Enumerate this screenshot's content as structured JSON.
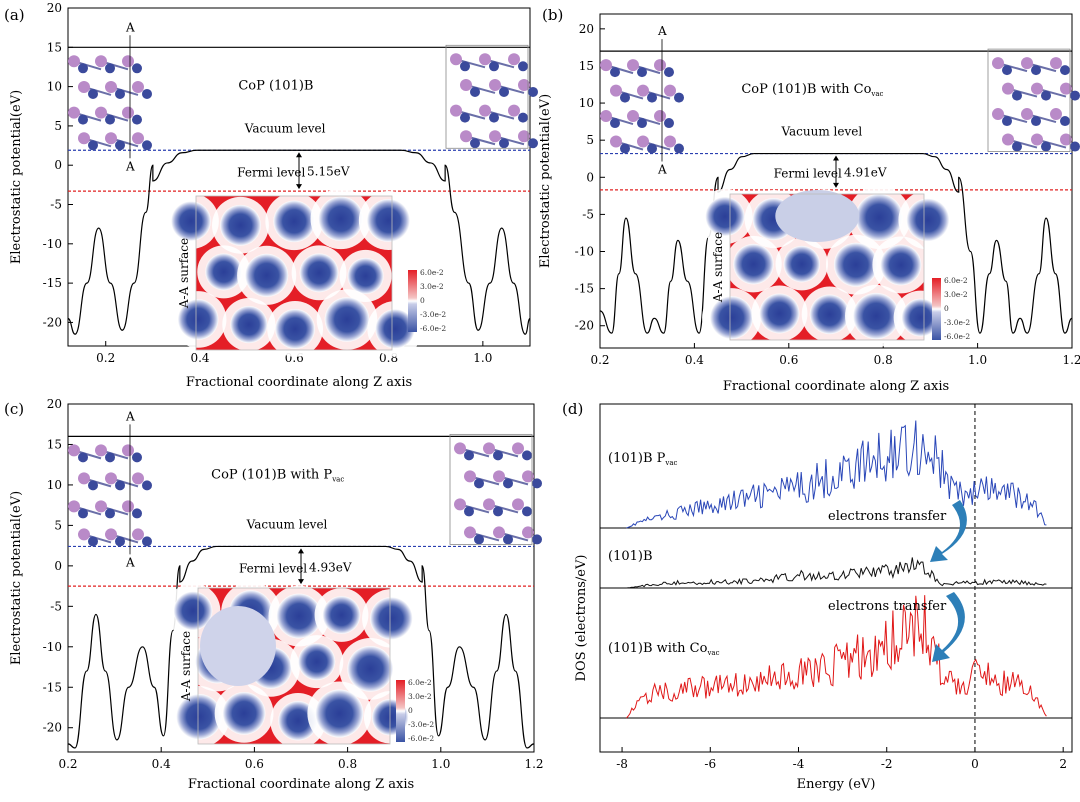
{
  "colors": {
    "potential_line": "#000000",
    "vacuum_line": "#2a3fb0",
    "fermi_line": "#e02020",
    "map_red": "#e41e26",
    "map_blue": "#3a53a4",
    "atom_co": "#3b4a9c",
    "atom_p": "#b98ac8",
    "dos_pvac": "#2a47b8",
    "dos_101b": "#111111",
    "dos_covac": "#e01818",
    "arrow": "#2d7fb8"
  },
  "icons": [
    "atomic-structure-icon",
    "curved-arrow-icon",
    "double-arrow-icon"
  ],
  "chart_data": [
    {
      "panel": "(a)",
      "type": "line",
      "title": "CoP (101)B",
      "title_sub": "",
      "xlabel": "Fractional coordinate along Z axis",
      "ylabel": "Electrostatic potential(eV)",
      "xlim": [
        0.12,
        1.1
      ],
      "ylim": [
        -23,
        20
      ],
      "xticks": [
        "0.2",
        "0.4",
        "0.6",
        "0.8",
        "1.0"
      ],
      "xtick_values": [
        0.2,
        0.4,
        0.6,
        0.8,
        1.0
      ],
      "yticks": [
        "20",
        "15",
        "10",
        "5",
        "0",
        "-5",
        "-10",
        "-15",
        "-20"
      ],
      "ytick_values": [
        20,
        15,
        10,
        5,
        0,
        -5,
        -10,
        -15,
        -20
      ],
      "slab_top": 15,
      "vacuum_level": 1.9,
      "fermi_level": -3.3,
      "work_function": "5.15eV",
      "vacuum_label": "Vacuum level",
      "fermi_label": "Fermi level",
      "marker_label": "A",
      "surface_label": "A-A surface",
      "colorbar_ticks": [
        "6.0e-2",
        "3.0e-2",
        "0",
        "-3.0e-2",
        "-6.0e-2"
      ],
      "plateau": [
        0.3,
        0.92
      ],
      "left_wells": [
        [
          0.12,
          -19.5
        ],
        [
          0.135,
          -21.5
        ],
        [
          0.16,
          -15
        ],
        [
          0.185,
          -8
        ],
        [
          0.21,
          -15
        ],
        [
          0.235,
          -21
        ],
        [
          0.26,
          -15
        ],
        [
          0.285,
          -6
        ],
        [
          0.3,
          0
        ]
      ],
      "right_wells": [
        [
          0.92,
          0
        ],
        [
          0.94,
          -6
        ],
        [
          0.97,
          -15
        ],
        [
          0.99,
          -21
        ],
        [
          1.015,
          -15
        ],
        [
          1.04,
          -8
        ],
        [
          1.065,
          -15
        ],
        [
          1.09,
          -21.5
        ],
        [
          1.1,
          -19.5
        ]
      ]
    },
    {
      "panel": "(b)",
      "type": "line",
      "title": "CoP (101)B  with Co",
      "title_sub": "vac",
      "xlabel": "Fractional coordinate along Z axis",
      "ylabel": "Electrostatic potential(eV)",
      "xlim": [
        0.2,
        1.2
      ],
      "ylim": [
        -23,
        22
      ],
      "xticks": [
        "0.2",
        "0.4",
        "0.6",
        "0.8",
        "1.0",
        "1.2"
      ],
      "xtick_values": [
        0.2,
        0.4,
        0.6,
        0.8,
        1.0,
        1.2
      ],
      "yticks": [
        "20",
        "15",
        "10",
        "5",
        "0",
        "-5",
        "-10",
        "-15",
        "-20"
      ],
      "ytick_values": [
        20,
        15,
        10,
        5,
        0,
        -5,
        -10,
        -15,
        -20
      ],
      "slab_top": 17,
      "vacuum_level": 3.2,
      "fermi_level": -1.7,
      "work_function": "4.91eV",
      "vacuum_label": "Vacuum level",
      "fermi_label": "Fermi level",
      "marker_label": "A",
      "surface_label": "A-A surface",
      "colorbar_ticks": [
        "6.0e-2",
        "3.0e-2",
        "0",
        "-3.0e-2",
        "-6.0e-2"
      ],
      "plateau": [
        0.45,
        0.96
      ],
      "left_wells": [
        [
          0.2,
          -18
        ],
        [
          0.225,
          -21
        ],
        [
          0.24,
          -13
        ],
        [
          0.255,
          -5.5
        ],
        [
          0.275,
          -13
        ],
        [
          0.3,
          -21
        ],
        [
          0.315,
          -19
        ],
        [
          0.335,
          -21
        ],
        [
          0.35,
          -14
        ],
        [
          0.365,
          -8.5
        ],
        [
          0.385,
          -14
        ],
        [
          0.41,
          -21
        ],
        [
          0.43,
          -8
        ],
        [
          0.45,
          0
        ]
      ],
      "right_wells": [
        [
          0.96,
          0
        ],
        [
          0.985,
          -10
        ],
        [
          1.005,
          -21
        ],
        [
          1.025,
          -13
        ],
        [
          1.04,
          -8.5
        ],
        [
          1.06,
          -14
        ],
        [
          1.075,
          -21
        ],
        [
          1.09,
          -19
        ],
        [
          1.105,
          -21
        ],
        [
          1.13,
          -13
        ],
        [
          1.145,
          -5.5
        ],
        [
          1.165,
          -13
        ],
        [
          1.185,
          -21
        ],
        [
          1.2,
          -19
        ]
      ]
    },
    {
      "panel": "(c)",
      "type": "line",
      "title": "CoP (101)B with P",
      "title_sub": "vac",
      "xlabel": "Fractional coordinate along Z axis",
      "ylabel": "Electrostatic potential(eV)",
      "xlim": [
        0.2,
        1.2
      ],
      "ylim": [
        -23,
        20
      ],
      "xticks": [
        "0.2",
        "0.4",
        "0.6",
        "0.8",
        "1.0",
        "1.2"
      ],
      "xtick_values": [
        0.2,
        0.4,
        0.6,
        0.8,
        1.0,
        1.2
      ],
      "yticks": [
        "20",
        "15",
        "10",
        "5",
        "0",
        "-5",
        "-10",
        "-15",
        "-20"
      ],
      "ytick_values": [
        20,
        15,
        10,
        5,
        0,
        -5,
        -10,
        -15,
        -20
      ],
      "slab_top": 16,
      "vacuum_level": 2.4,
      "fermi_level": -2.5,
      "work_function": "4.93eV",
      "vacuum_label": "Vacuum level",
      "fermi_label": "Fermi level",
      "marker_label": "A",
      "surface_label": "A-A surface",
      "colorbar_ticks": [
        "6.0e-2",
        "3.0e-2",
        "0",
        "-3.0e-2",
        "-6.0e-2"
      ],
      "plateau": [
        0.44,
        0.96
      ],
      "left_wells": [
        [
          0.2,
          -22
        ],
        [
          0.215,
          -22.5
        ],
        [
          0.24,
          -13
        ],
        [
          0.26,
          -6
        ],
        [
          0.28,
          -13
        ],
        [
          0.305,
          -21.5
        ],
        [
          0.33,
          -15
        ],
        [
          0.36,
          -10
        ],
        [
          0.385,
          -15
        ],
        [
          0.405,
          -21
        ],
        [
          0.425,
          -8
        ],
        [
          0.44,
          0
        ]
      ],
      "right_wells": [
        [
          0.96,
          0
        ],
        [
          0.975,
          -8
        ],
        [
          0.995,
          -21
        ],
        [
          1.015,
          -15
        ],
        [
          1.04,
          -10
        ],
        [
          1.07,
          -15
        ],
        [
          1.095,
          -21.5
        ],
        [
          1.12,
          -13
        ],
        [
          1.14,
          -6
        ],
        [
          1.16,
          -13
        ],
        [
          1.185,
          -22.5
        ],
        [
          1.2,
          -22
        ]
      ]
    },
    {
      "panel": "(d)",
      "type": "line",
      "xlabel": "Energy (eV)",
      "ylabel": "DOS (electrons/eV)",
      "xlim": [
        -8.5,
        2.2
      ],
      "xticks": [
        "-8",
        "-6",
        "-4",
        "-2",
        "0",
        "2"
      ],
      "xtick_values": [
        -8,
        -6,
        -4,
        -2,
        0,
        2
      ],
      "fermi_energy": 0,
      "series": [
        {
          "name": "(101)B P",
          "name_sub": "vac",
          "color_key": "dos_pvac",
          "envelope": [
            [
              -7.9,
              0
            ],
            [
              -7.6,
              0.5
            ],
            [
              -6,
              1.8
            ],
            [
              -4,
              3.2
            ],
            [
              -3,
              4.5
            ],
            [
              -2.2,
              5.5
            ],
            [
              -1.5,
              6.8
            ],
            [
              -1,
              6.3
            ],
            [
              -0.6,
              3.5
            ],
            [
              -0.3,
              2.6
            ],
            [
              0.2,
              3
            ],
            [
              1,
              2.6
            ],
            [
              1.4,
              1.5
            ],
            [
              1.65,
              0
            ]
          ]
        },
        {
          "name": "(101)B",
          "name_sub": "",
          "color_key": "dos_101b",
          "envelope": [
            [
              -7.9,
              0
            ],
            [
              -7,
              0.6
            ],
            [
              -5,
              0.8
            ],
            [
              -4,
              1.5
            ],
            [
              -3,
              1.6
            ],
            [
              -2,
              2
            ],
            [
              -1.4,
              2.7
            ],
            [
              -1.1,
              2.2
            ],
            [
              -0.8,
              0.4
            ],
            [
              0,
              0.7
            ],
            [
              1,
              0.7
            ],
            [
              1.65,
              0.4
            ]
          ]
        },
        {
          "name": "(101)B with Co",
          "name_sub": "vac",
          "color_key": "dos_covac",
          "envelope": [
            [
              -7.9,
              0
            ],
            [
              -7.5,
              2
            ],
            [
              -6,
              2.6
            ],
            [
              -4,
              3.5
            ],
            [
              -3,
              4.5
            ],
            [
              -2,
              6
            ],
            [
              -1.5,
              8
            ],
            [
              -1.1,
              7.5
            ],
            [
              -0.7,
              3.2
            ],
            [
              -0.2,
              2.4
            ],
            [
              0.1,
              4
            ],
            [
              0.5,
              3
            ],
            [
              1.2,
              2.6
            ],
            [
              1.65,
              0
            ]
          ]
        }
      ],
      "annotations": [
        "electrons transfer",
        "electrons transfer"
      ]
    }
  ]
}
